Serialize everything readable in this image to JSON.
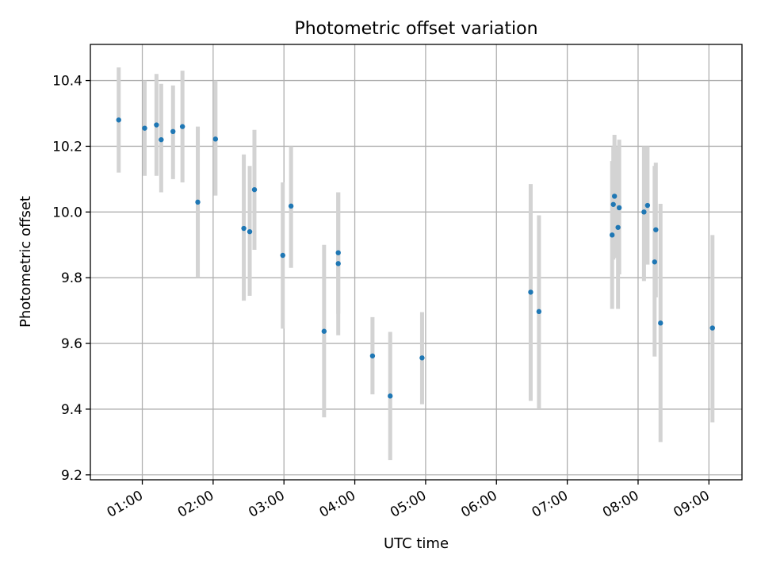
{
  "chart_data": {
    "type": "scatter",
    "title": "Photometric offset variation",
    "xlabel": "UTC time",
    "ylabel": "Photometric offset",
    "xlim": [
      "00:16",
      "09:28"
    ],
    "ylim": [
      9.185,
      10.51
    ],
    "grid": true,
    "x_ticks": [
      "01:00",
      "02:00",
      "03:00",
      "04:00",
      "05:00",
      "06:00",
      "07:00",
      "08:00",
      "09:00"
    ],
    "y_ticks": [
      "9.2",
      "9.4",
      "9.6",
      "9.8",
      "10.0",
      "10.2",
      "10.4"
    ],
    "colors": {
      "points": "#1f77b4",
      "error_bars": "#d3d3d3",
      "grid": "#b0b0b0"
    },
    "series": [
      {
        "error_bars": true,
        "points": [
          {
            "x": "00:40",
            "y": 10.28,
            "err_low": 10.12,
            "err_high": 10.44
          },
          {
            "x": "01:02",
            "y": 10.255,
            "err_low": 10.11,
            "err_high": 10.4
          },
          {
            "x": "01:12",
            "y": 10.265,
            "err_low": 10.11,
            "err_high": 10.42
          },
          {
            "x": "01:16",
            "y": 10.22,
            "err_low": 10.06,
            "err_high": 10.39
          },
          {
            "x": "01:26",
            "y": 10.245,
            "err_low": 10.1,
            "err_high": 10.385
          },
          {
            "x": "01:34",
            "y": 10.26,
            "err_low": 10.09,
            "err_high": 10.43
          },
          {
            "x": "01:47",
            "y": 10.03,
            "err_low": 9.8,
            "err_high": 10.26
          },
          {
            "x": "02:02",
            "y": 10.222,
            "err_low": 10.05,
            "err_high": 10.4
          },
          {
            "x": "02:26",
            "y": 9.95,
            "err_low": 9.73,
            "err_high": 10.175
          },
          {
            "x": "02:31",
            "y": 9.94,
            "err_low": 9.745,
            "err_high": 10.14
          },
          {
            "x": "02:35",
            "y": 10.068,
            "err_low": 9.885,
            "err_high": 10.25
          },
          {
            "x": "02:59",
            "y": 9.868,
            "err_low": 9.645,
            "err_high": 10.09
          },
          {
            "x": "03:06",
            "y": 10.018,
            "err_low": 9.83,
            "err_high": 10.2
          },
          {
            "x": "03:34",
            "y": 9.637,
            "err_low": 9.375,
            "err_high": 9.9
          },
          {
            "x": "03:46",
            "y": 9.876,
            "err_low": 9.69,
            "err_high": 10.06
          },
          {
            "x": "03:46",
            "y": 9.843,
            "err_low": 9.625,
            "err_high": 10.06
          },
          {
            "x": "04:15",
            "y": 9.562,
            "err_low": 9.445,
            "err_high": 9.68
          },
          {
            "x": "04:30",
            "y": 9.44,
            "err_low": 9.245,
            "err_high": 9.635
          },
          {
            "x": "04:57",
            "y": 9.556,
            "err_low": 9.415,
            "err_high": 9.695
          },
          {
            "x": "06:29",
            "y": 9.756,
            "err_low": 9.425,
            "err_high": 10.085
          },
          {
            "x": "06:36",
            "y": 9.697,
            "err_low": 9.4,
            "err_high": 9.99
          },
          {
            "x": "07:38",
            "y": 9.93,
            "err_low": 9.705,
            "err_high": 10.155
          },
          {
            "x": "07:39",
            "y": 10.023,
            "err_low": 9.855,
            "err_high": 10.2
          },
          {
            "x": "07:40",
            "y": 10.048,
            "err_low": 9.86,
            "err_high": 10.235
          },
          {
            "x": "07:43",
            "y": 9.953,
            "err_low": 9.705,
            "err_high": 10.2
          },
          {
            "x": "07:44",
            "y": 10.013,
            "err_low": 9.81,
            "err_high": 10.22
          },
          {
            "x": "08:05",
            "y": 10.0,
            "err_low": 9.79,
            "err_high": 10.2
          },
          {
            "x": "08:08",
            "y": 10.02,
            "err_low": 9.84,
            "err_high": 10.2
          },
          {
            "x": "08:14",
            "y": 9.848,
            "err_low": 9.56,
            "err_high": 10.14
          },
          {
            "x": "08:15",
            "y": 9.946,
            "err_low": 9.74,
            "err_high": 10.15
          },
          {
            "x": "08:19",
            "y": 9.662,
            "err_low": 9.3,
            "err_high": 10.025
          },
          {
            "x": "09:03",
            "y": 9.647,
            "err_low": 9.36,
            "err_high": 9.93
          }
        ]
      }
    ]
  }
}
